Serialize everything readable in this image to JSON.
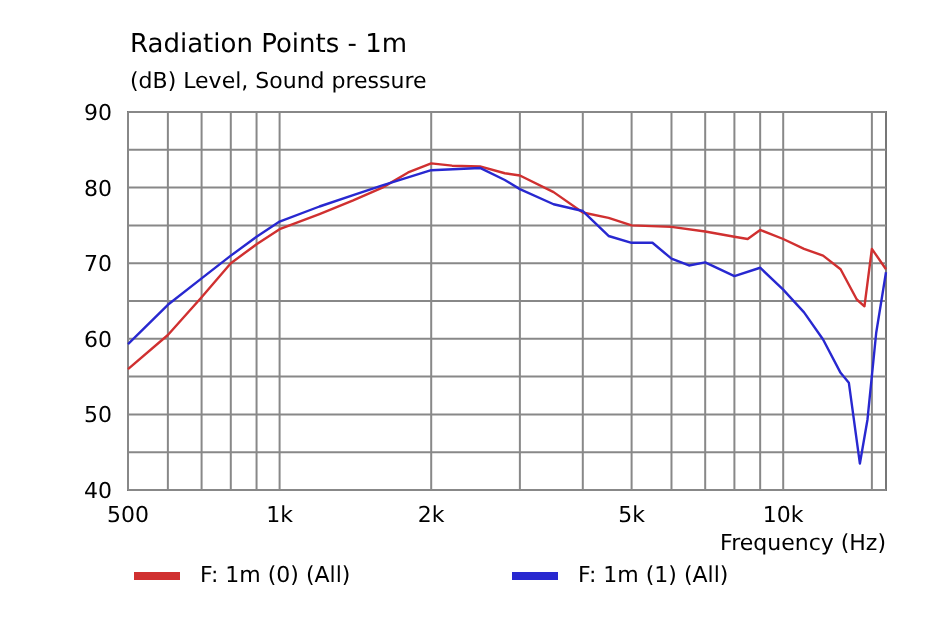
{
  "chart_data": {
    "type": "line",
    "title": "Radiation Points - 1m",
    "ylabel": "(dB)  Level, Sound pressure",
    "xlabel": "Frequency  (Hz)",
    "log": "x",
    "grid": true,
    "legend": "bottom",
    "line_style": "solid",
    "marker": "none",
    "xlim": [
      500,
      16000
    ],
    "ylim": [
      40,
      90
    ],
    "xticks": [
      500,
      {
        "value": 600,
        "label": null
      },
      {
        "value": 700,
        "label": null
      },
      {
        "value": 800,
        "label": null
      },
      {
        "value": 900,
        "label": null
      },
      {
        "value": 1000,
        "label": "1k"
      },
      {
        "value": 2000,
        "label": "2k"
      },
      {
        "value": 3000,
        "label": null
      },
      {
        "value": 4000,
        "label": null
      },
      {
        "value": 5000,
        "label": "5k"
      },
      {
        "value": 6000,
        "label": null
      },
      {
        "value": 7000,
        "label": null
      },
      {
        "value": 8000,
        "label": null
      },
      {
        "value": 9000,
        "label": null
      },
      {
        "value": 10000,
        "label": "10k"
      },
      {
        "value": 15000,
        "label": null
      }
    ],
    "yticks": [
      40,
      {
        "value": 45,
        "label": null
      },
      50,
      {
        "value": 55,
        "label": null
      },
      60,
      {
        "value": 65,
        "label": null
      },
      70,
      {
        "value": 75,
        "label": null
      },
      80,
      {
        "value": 85,
        "label": null
      },
      90
    ],
    "series": [
      {
        "name": "F: 1m (0)  (All)",
        "color": "#d03030",
        "x": [
          500,
          600,
          700,
          800,
          900,
          1000,
          1200,
          1400,
          1600,
          1800,
          2000,
          2200,
          2500,
          2800,
          3000,
          3500,
          4000,
          4500,
          5000,
          6000,
          7000,
          8000,
          8500,
          9000,
          10000,
          11000,
          12000,
          13000,
          14000,
          14500,
          15000,
          16000
        ],
        "values": [
          56,
          60.5,
          65.5,
          70,
          72.5,
          74.5,
          76.5,
          78.3,
          80,
          82,
          83.2,
          82.9,
          82.8,
          81.9,
          81.6,
          79.4,
          76.7,
          76,
          75,
          74.8,
          74.2,
          73.5,
          73.2,
          74.4,
          73.2,
          71.9,
          71,
          69.2,
          65.2,
          64.3,
          71.9,
          69.2
        ]
      },
      {
        "name": "F: 1m (1)  (All)",
        "color": "#2828d0",
        "x": [
          500,
          600,
          700,
          800,
          900,
          1000,
          1200,
          1400,
          1600,
          2000,
          2500,
          2800,
          3000,
          3500,
          4000,
          4500,
          5000,
          5500,
          6000,
          6500,
          7000,
          8000,
          9000,
          10000,
          11000,
          12000,
          13000,
          13500,
          14200,
          14700,
          15300,
          16000
        ],
        "values": [
          59.3,
          64.5,
          68,
          71,
          73.5,
          75.5,
          77.5,
          79,
          80.3,
          82.3,
          82.6,
          81,
          79.8,
          77.8,
          76.9,
          73.6,
          72.7,
          72.7,
          70.6,
          69.7,
          70.1,
          68.3,
          69.4,
          66.5,
          63.5,
          59.9,
          55.5,
          54.2,
          43.5,
          49.3,
          60.8,
          68.8
        ]
      }
    ]
  }
}
